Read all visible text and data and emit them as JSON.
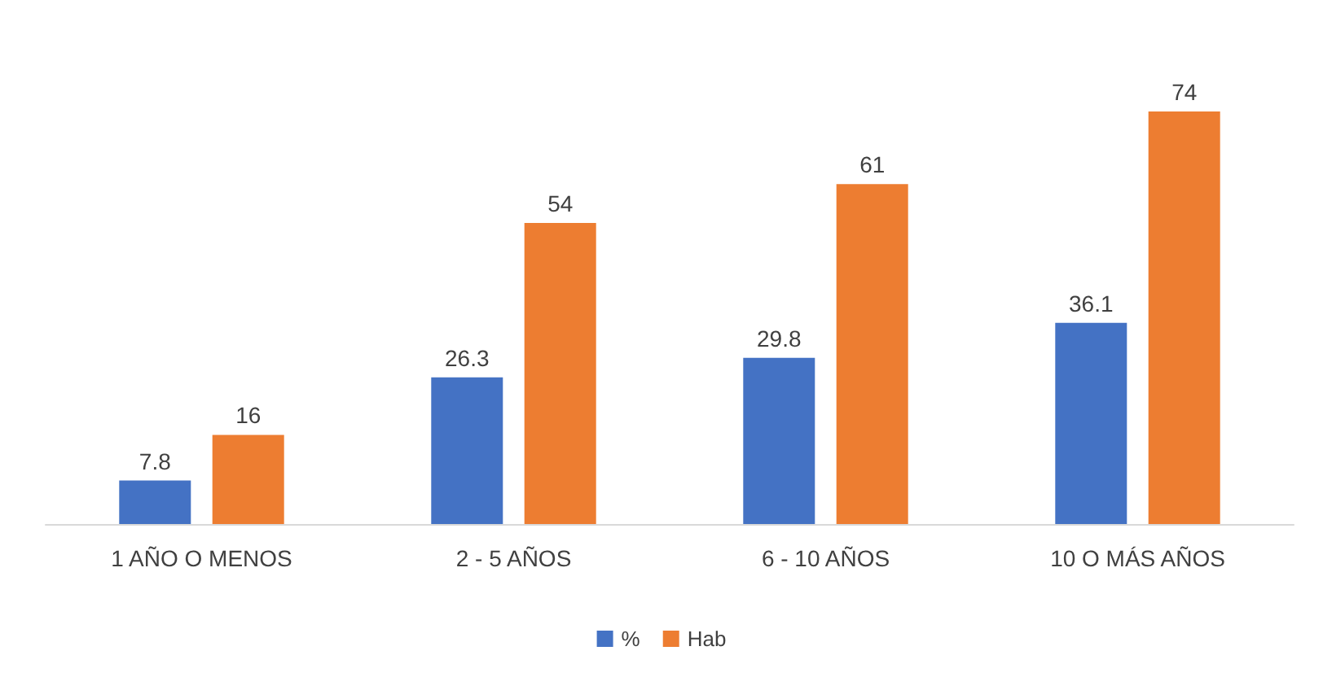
{
  "chart_data": {
    "type": "bar",
    "categories": [
      "1 AÑO O MENOS",
      "2 - 5 AÑOS",
      "6 - 10 AÑOS",
      "10 O MÁS AÑOS"
    ],
    "series": [
      {
        "name": "%",
        "color": "#4472c4",
        "values": [
          7.8,
          26.3,
          29.8,
          36.1
        ]
      },
      {
        "name": "Hab",
        "color": "#ed7d31",
        "values": [
          16,
          54,
          61,
          74
        ]
      }
    ],
    "data_labels": true,
    "legend": "bottom"
  }
}
